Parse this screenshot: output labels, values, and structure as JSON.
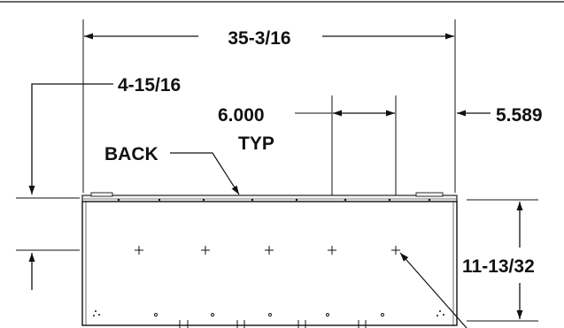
{
  "dimensions": {
    "overall_width": "35-3/16",
    "back_offset": "4-15/16",
    "spacing": "6.000",
    "spacing_note": "TYP",
    "right_offset": "5.589",
    "height": "11-13/32"
  },
  "labels": {
    "back": "BACK"
  }
}
